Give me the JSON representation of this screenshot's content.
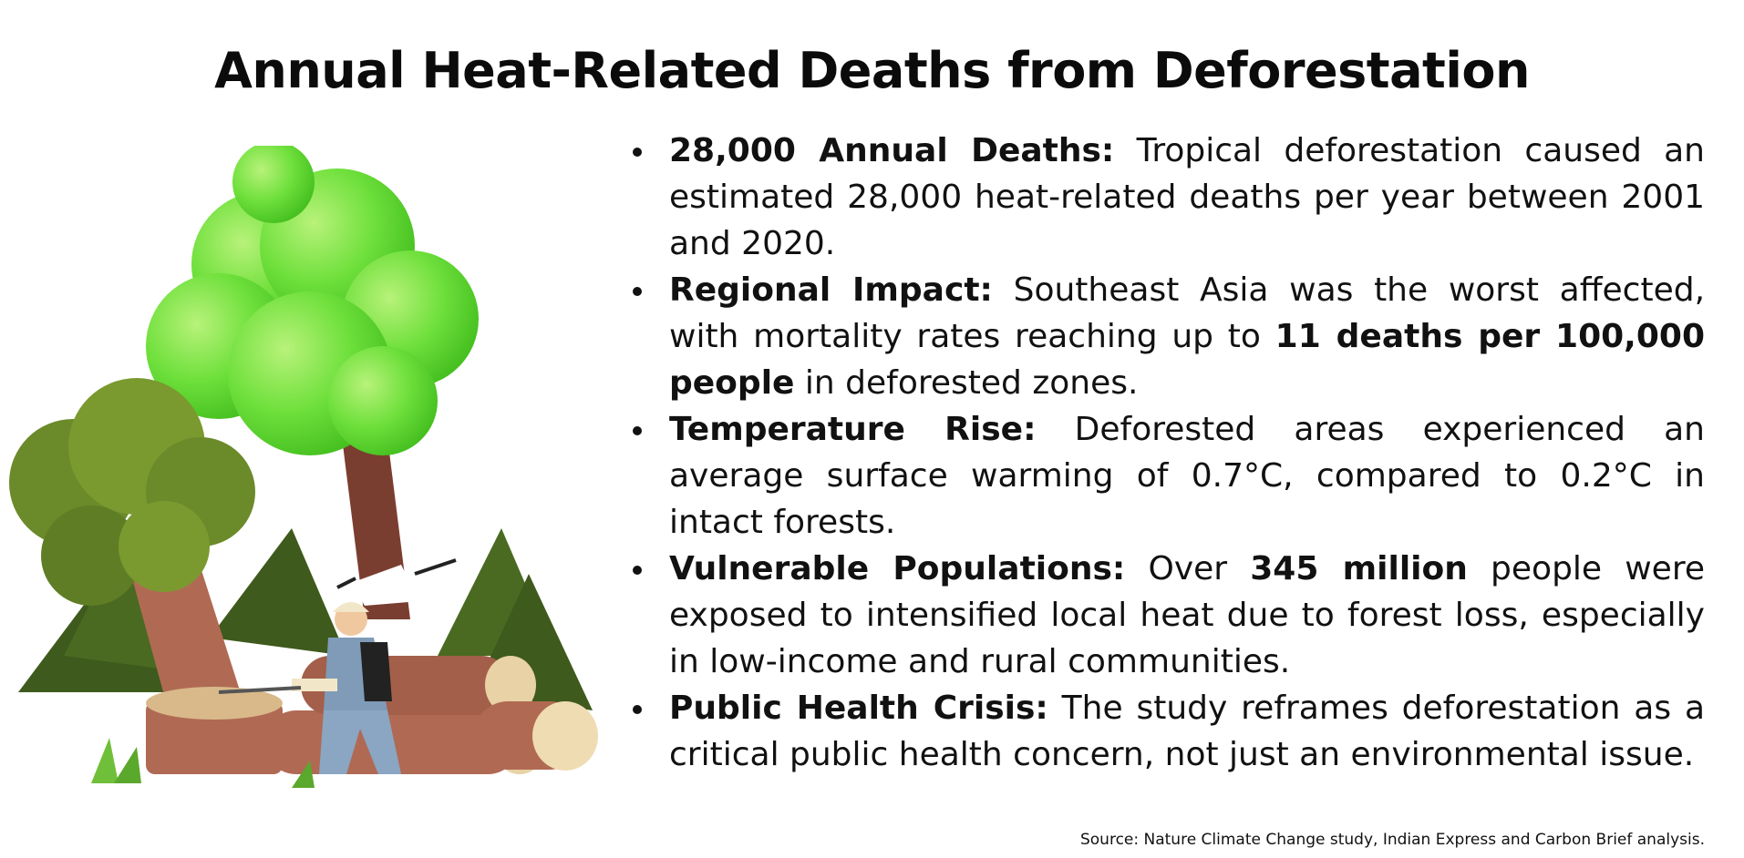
{
  "title": "Annual Heat-Related Deaths from Deforestation",
  "bullets": [
    {
      "label": "28,000 Annual Deaths:",
      "text_a": " Tropical deforestation caused an estimated 28,000 heat-related deaths per year between 2001 and 2020.",
      "highlight": "",
      "text_b": ""
    },
    {
      "label": "Regional Impact:",
      "text_a": " Southeast Asia was the worst affected, with mortality rates reaching up to ",
      "highlight": "11 deaths per 100,000 people",
      "text_b": " in deforested zones."
    },
    {
      "label": "Temperature Rise:",
      "text_a": " Deforested areas experienced an average surface warming of 0.7°C, compared to 0.2°C in intact forests.",
      "highlight": "",
      "text_b": ""
    },
    {
      "label": "Vulnerable Populations:",
      "text_a": " Over ",
      "highlight": "345 million",
      "text_b": " people were exposed to intensified local heat due to forest loss, especially in low-income and rural communities."
    },
    {
      "label": "Public Health Crisis:",
      "text_a": " The study reframes deforestation as a critical public health concern, not just an environmental issue.",
      "highlight": "",
      "text_b": ""
    }
  ],
  "source": "Source: Nature Climate Change study, Indian Express and Carbon Brief analysis.",
  "colors": {
    "canopy_light": "#7ee04a",
    "canopy_dark": "#6b8a2a",
    "trunk": "#8a4a3a",
    "log": "#b06a54",
    "log_end": "#e8d2a6",
    "pine": "#3e5a1c",
    "worker_shirt": "#7f9bb8"
  }
}
